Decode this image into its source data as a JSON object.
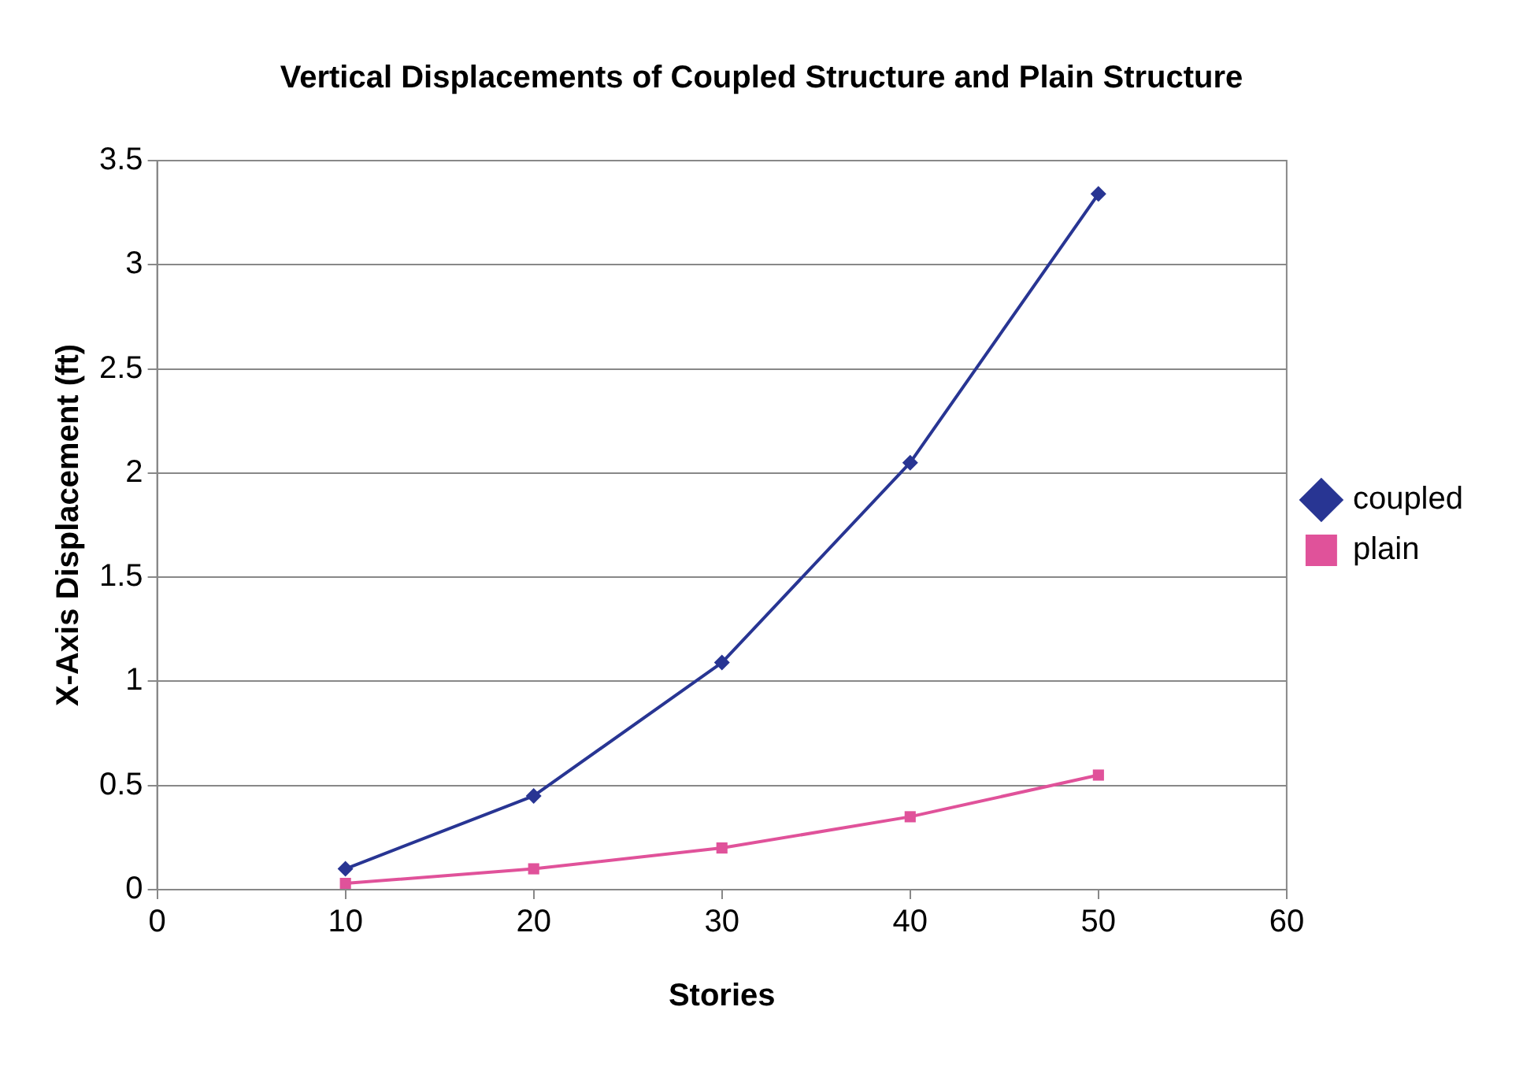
{
  "chart_data": {
    "type": "line",
    "title": "Vertical Displacements of Coupled Structure and Plain Structure",
    "xlabel": "Stories",
    "ylabel": "X-Axis Displacement (ft)",
    "x": [
      10,
      20,
      30,
      40,
      50
    ],
    "series": [
      {
        "name": "coupled",
        "color": "#283593",
        "marker": "diamond",
        "values": [
          0.1,
          0.45,
          1.09,
          2.05,
          3.34
        ]
      },
      {
        "name": "plain",
        "color": "#e0529a",
        "marker": "square",
        "values": [
          0.03,
          0.1,
          0.2,
          0.35,
          0.55
        ]
      }
    ],
    "xlim": [
      0,
      60
    ],
    "xticks": [
      0,
      10,
      20,
      30,
      40,
      50,
      60
    ],
    "ylim": [
      0,
      3.5
    ],
    "yticks": [
      0,
      0.5,
      1,
      1.5,
      2,
      2.5,
      3,
      3.5
    ],
    "grid": "y",
    "legend": "right",
    "line_style": "solid"
  }
}
